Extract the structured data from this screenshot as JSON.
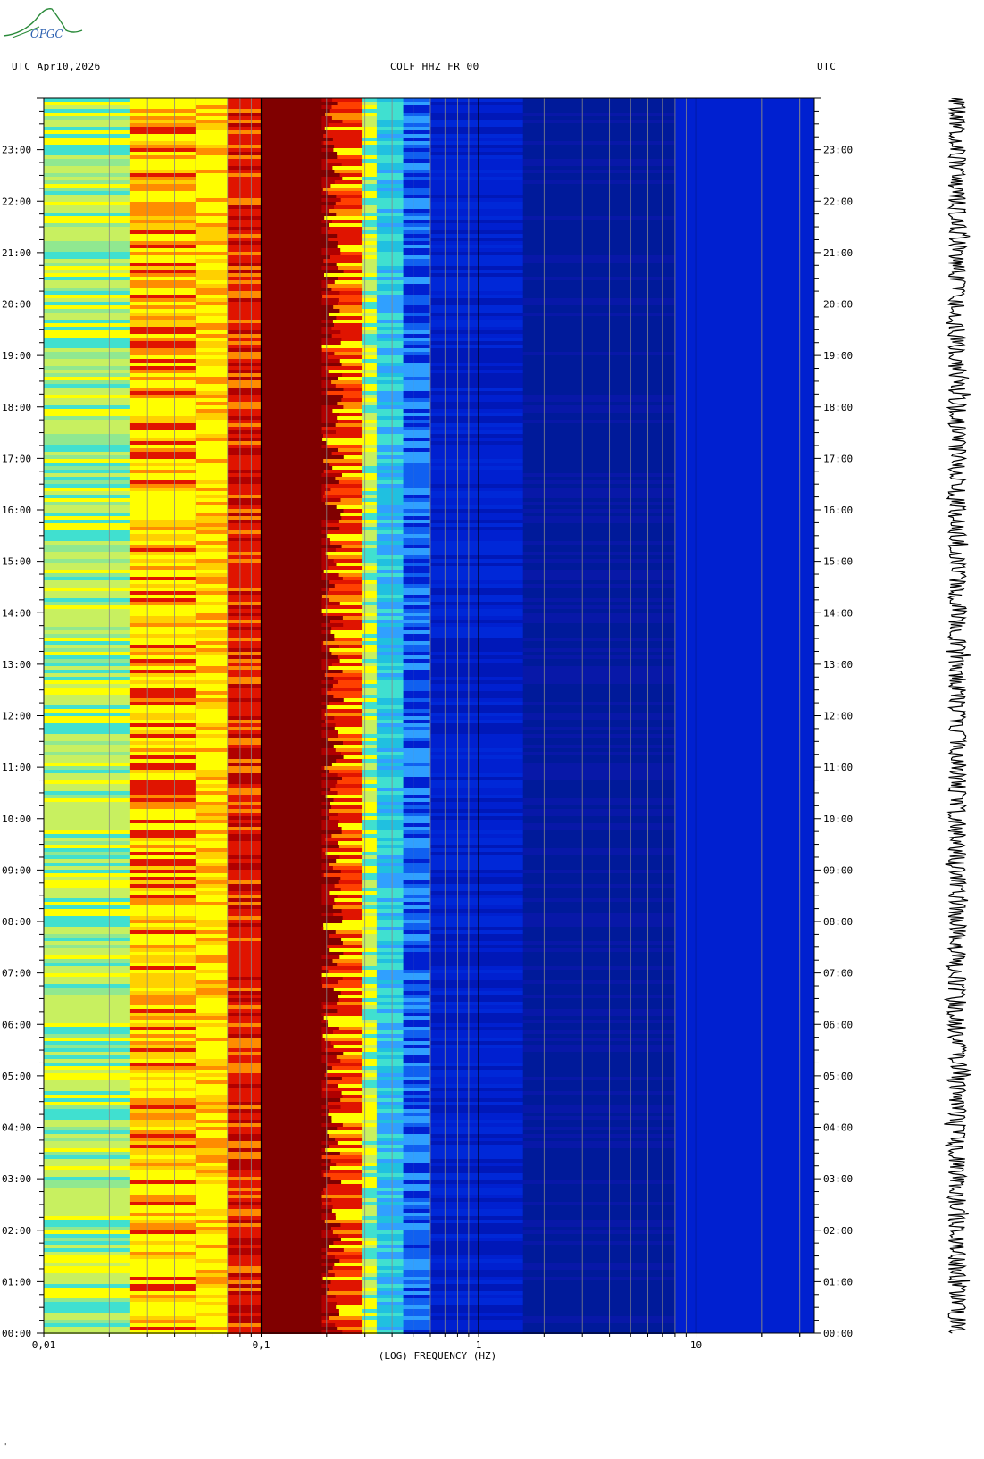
{
  "logo_text": "OPGC",
  "header": {
    "left": "UTC  Apr10,2026",
    "center": "COLF HHZ FR 00",
    "right": "UTC"
  },
  "footer_mark": "\"",
  "chart_data": {
    "type": "heatmap",
    "title": "COLF HHZ FR 00",
    "xlabel": "(LOG) FREQUENCY (HZ)",
    "x_scale": "log",
    "xlim": [
      0.01,
      35
    ],
    "x_tick_labels": [
      {
        "value": 0.01,
        "label": "0,01"
      },
      {
        "value": 0.1,
        "label": "0,1"
      },
      {
        "value": 1,
        "label": "1"
      },
      {
        "value": 10,
        "label": "10"
      }
    ],
    "ylabel": "UTC",
    "ylim_hours": [
      0,
      24
    ],
    "y_tick_labels": [
      "00:00",
      "01:00",
      "02:00",
      "03:00",
      "04:00",
      "05:00",
      "06:00",
      "07:00",
      "08:00",
      "09:00",
      "10:00",
      "11:00",
      "12:00",
      "13:00",
      "14:00",
      "15:00",
      "16:00",
      "17:00",
      "18:00",
      "19:00",
      "20:00",
      "21:00",
      "22:00",
      "23:00"
    ],
    "date": "Apr10,2026",
    "spectral_bands": [
      {
        "f_min": 0.01,
        "f_max": 0.025,
        "level": "cyan-yellow"
      },
      {
        "f_min": 0.025,
        "f_max": 0.05,
        "level": "yellow-orange"
      },
      {
        "f_min": 0.05,
        "f_max": 0.07,
        "level": "yellow"
      },
      {
        "f_min": 0.07,
        "f_max": 0.1,
        "level": "red"
      },
      {
        "f_min": 0.1,
        "f_max": 0.19,
        "level": "dark-red"
      },
      {
        "f_min": 0.19,
        "f_max": 0.3,
        "level": "red-yellow"
      },
      {
        "f_min": 0.3,
        "f_max": 0.6,
        "level": "cyan-blue"
      },
      {
        "f_min": 0.6,
        "f_max": 35,
        "level": "blue"
      }
    ],
    "grid": true
  },
  "colors": {
    "dark_red": "#800000",
    "red": "#e01400",
    "orange": "#ff8c00",
    "yellow": "#ffff00",
    "green_yellow": "#c8f060",
    "cyan": "#40e0d0",
    "light_blue": "#30a0ff",
    "blue": "#0020d0",
    "dark_blue": "#001a9a"
  }
}
